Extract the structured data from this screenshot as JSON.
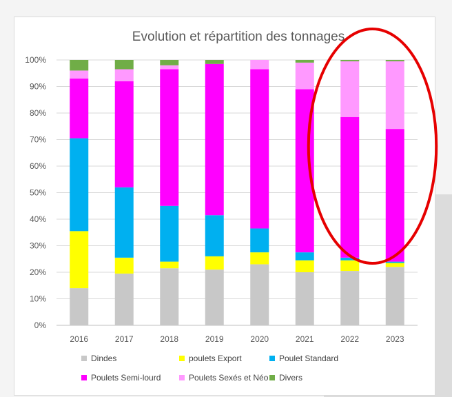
{
  "chart_data": {
    "type": "bar",
    "stacked": true,
    "normalized": true,
    "title": "Evolution et répartition des tonnages",
    "xlabel": "",
    "ylabel": "",
    "categories": [
      "2016",
      "2017",
      "2018",
      "2019",
      "2020",
      "2021",
      "2022",
      "2023"
    ],
    "ylim": [
      0,
      100
    ],
    "yticks": [
      "0%",
      "10%",
      "20%",
      "30%",
      "40%",
      "50%",
      "60%",
      "70%",
      "80%",
      "90%",
      "100%"
    ],
    "grid": true,
    "legend_position": "bottom",
    "series": [
      {
        "name": "Dindes",
        "color": "#c8c8c8",
        "values": [
          14,
          19.5,
          21.5,
          21,
          23,
          20,
          20.5,
          22
        ]
      },
      {
        "name": "poulets Export",
        "color": "#ffff00",
        "values": [
          21.5,
          6,
          2.5,
          5,
          4.5,
          4.5,
          4,
          1.5
        ]
      },
      {
        "name": "Poulet Standard",
        "color": "#00b0f0",
        "values": [
          35,
          26.5,
          21,
          15.5,
          9,
          3,
          1,
          0.5
        ]
      },
      {
        "name": "Poulets Semi-lourd",
        "color": "#ff00ff",
        "values": [
          22.5,
          40,
          51.5,
          57,
          60,
          61.5,
          53,
          50
        ]
      },
      {
        "name": "Poulets Sexés et Néo",
        "color": "#ff99ff",
        "values": [
          3,
          4.5,
          1.5,
          0,
          3.5,
          10,
          21,
          25.5
        ]
      },
      {
        "name": "Divers",
        "color": "#70ad47",
        "values": [
          4,
          3.5,
          2,
          1.5,
          0,
          1,
          0.5,
          0.5
        ]
      }
    ],
    "annotation": {
      "type": "ellipse",
      "color": "#e60000",
      "around": [
        "2022",
        "2023"
      ]
    }
  }
}
